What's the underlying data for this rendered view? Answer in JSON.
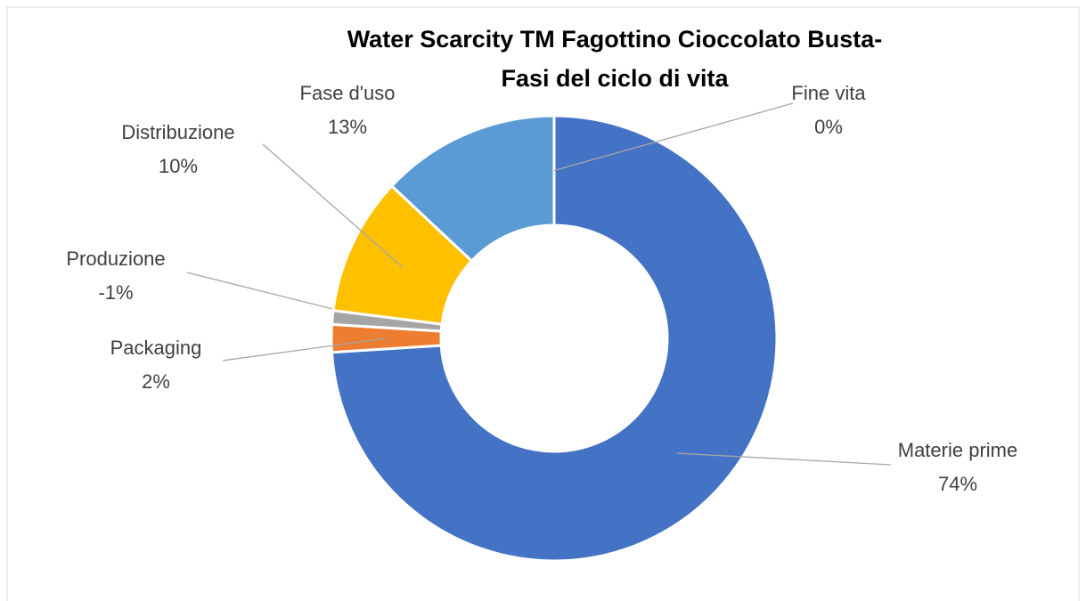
{
  "chart_data": {
    "type": "doughnut",
    "title": "Water Scarcity TM Fagottino Cioccolato Busta- Fasi del ciclo di vita",
    "categories": [
      "Materie prime",
      "Packaging",
      "Produzione",
      "Distribuzione",
      "Fase d'uso",
      "Fine vita"
    ],
    "values": [
      74,
      2,
      -1,
      10,
      13,
      0
    ],
    "value_labels": [
      "74%",
      "2%",
      "-1%",
      "10%",
      "13%",
      "0%"
    ],
    "colors": [
      "#4472c4",
      "#ed7d31",
      "#a5a5a5",
      "#ffc000",
      "#5b9bd5",
      "#70ad47"
    ]
  }
}
